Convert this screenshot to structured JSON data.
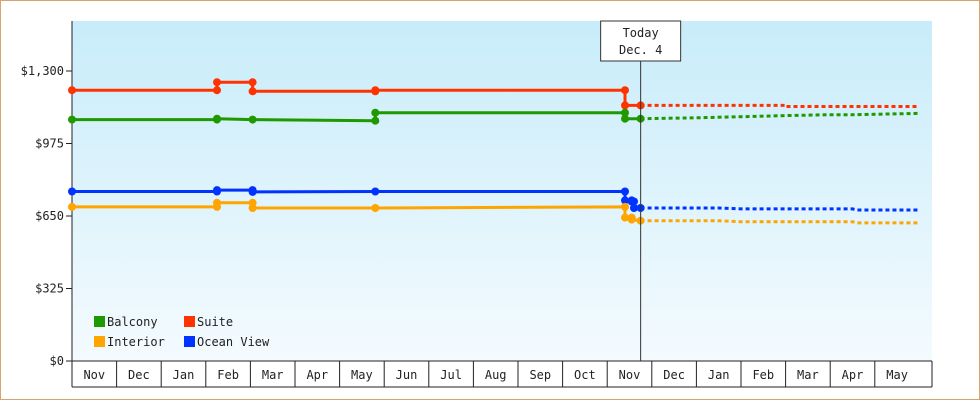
{
  "chart_data": {
    "type": "line",
    "y_axis": {
      "ticks": [
        0,
        325,
        650,
        975,
        1300
      ],
      "tick_labels": [
        "$0",
        "$325",
        "$650",
        "$975",
        "$1,300"
      ],
      "ylim": [
        0,
        1300
      ]
    },
    "x_axis": {
      "months": [
        "Nov",
        "Dec",
        "Jan",
        "Feb",
        "Mar",
        "Apr",
        "May",
        "Jun",
        "Jul",
        "Aug",
        "Sep",
        "Oct",
        "Nov",
        "Dec",
        "Jan",
        "Feb",
        "Mar",
        "Apr",
        "May"
      ]
    },
    "today_marker": {
      "line1": "Today",
      "line2": "Dec. 4"
    },
    "legend": [
      {
        "name": "Balcony",
        "color": "#1e9a00"
      },
      {
        "name": "Suite",
        "color": "#ff3300"
      },
      {
        "name": "Interior",
        "color": "#ffa500"
      },
      {
        "name": "Ocean View",
        "color": "#0033ff"
      }
    ],
    "grid": false,
    "legend_position": "bottom-left",
    "series": [
      {
        "name": "Suite",
        "color": "#ff3300",
        "points": [
          {
            "month": 0.0,
            "value": 1214
          },
          {
            "month": 3.25,
            "value": 1214
          },
          {
            "month": 3.25,
            "value": 1250
          },
          {
            "month": 4.05,
            "value": 1250
          },
          {
            "month": 4.05,
            "value": 1209
          },
          {
            "month": 6.8,
            "value": 1209
          },
          {
            "month": 6.8,
            "value": 1214
          },
          {
            "month": 12.4,
            "value": 1214
          },
          {
            "month": 12.4,
            "value": 1146
          },
          {
            "month": 12.75,
            "value": 1146
          }
        ],
        "forecast": [
          {
            "month": 12.75,
            "value": 1146
          },
          {
            "month": 16.0,
            "value": 1146
          },
          {
            "month": 16.0,
            "value": 1141
          },
          {
            "month": 19.0,
            "value": 1141
          }
        ]
      },
      {
        "name": "Balcony",
        "color": "#1e9a00",
        "points": [
          {
            "month": 0.0,
            "value": 1082
          },
          {
            "month": 3.25,
            "value": 1082
          },
          {
            "month": 3.25,
            "value": 1086
          },
          {
            "month": 4.05,
            "value": 1082
          },
          {
            "month": 6.8,
            "value": 1077
          },
          {
            "month": 6.8,
            "value": 1113
          },
          {
            "month": 12.4,
            "value": 1113
          },
          {
            "month": 12.4,
            "value": 1086
          },
          {
            "month": 12.75,
            "value": 1086
          }
        ],
        "forecast": [
          {
            "month": 12.75,
            "value": 1086
          },
          {
            "month": 14.0,
            "value": 1090
          },
          {
            "month": 15.0,
            "value": 1095
          },
          {
            "month": 16.0,
            "value": 1100
          },
          {
            "month": 17.0,
            "value": 1104
          },
          {
            "month": 17.5,
            "value": 1104
          },
          {
            "month": 19.0,
            "value": 1110
          }
        ]
      },
      {
        "name": "Ocean View",
        "color": "#0033ff",
        "points": [
          {
            "month": 0.0,
            "value": 760
          },
          {
            "month": 3.25,
            "value": 760
          },
          {
            "month": 3.25,
            "value": 766
          },
          {
            "month": 4.05,
            "value": 766
          },
          {
            "month": 4.05,
            "value": 758
          },
          {
            "month": 6.8,
            "value": 760
          },
          {
            "month": 12.4,
            "value": 760
          },
          {
            "month": 12.4,
            "value": 720
          },
          {
            "month": 12.55,
            "value": 720
          },
          {
            "month": 12.55,
            "value": 715
          },
          {
            "month": 12.6,
            "value": 715
          },
          {
            "month": 12.6,
            "value": 686
          },
          {
            "month": 12.75,
            "value": 686
          }
        ],
        "forecast": [
          {
            "month": 12.75,
            "value": 686
          },
          {
            "month": 14.5,
            "value": 686
          },
          {
            "month": 15.0,
            "value": 682
          },
          {
            "month": 17.5,
            "value": 682
          },
          {
            "month": 17.6,
            "value": 677
          },
          {
            "month": 19.0,
            "value": 677
          }
        ]
      },
      {
        "name": "Interior",
        "color": "#ffa500",
        "points": [
          {
            "month": 0.0,
            "value": 691
          },
          {
            "month": 3.25,
            "value": 691
          },
          {
            "month": 3.25,
            "value": 709
          },
          {
            "month": 4.05,
            "value": 709
          },
          {
            "month": 4.05,
            "value": 686
          },
          {
            "month": 6.8,
            "value": 686
          },
          {
            "month": 12.4,
            "value": 691
          },
          {
            "month": 12.4,
            "value": 643
          },
          {
            "month": 12.55,
            "value": 643
          },
          {
            "month": 12.55,
            "value": 634
          },
          {
            "month": 12.75,
            "value": 629
          }
        ],
        "forecast": [
          {
            "month": 12.75,
            "value": 629
          },
          {
            "month": 14.5,
            "value": 629
          },
          {
            "month": 15.0,
            "value": 624
          },
          {
            "month": 17.5,
            "value": 624
          },
          {
            "month": 17.6,
            "value": 619
          },
          {
            "month": 19.0,
            "value": 619
          }
        ]
      }
    ]
  }
}
